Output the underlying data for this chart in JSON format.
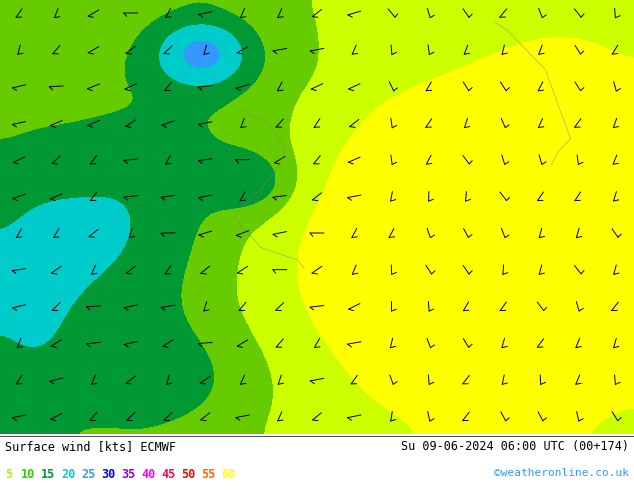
{
  "title_left": "Surface wind [kts] ECMWF",
  "title_right": "Su 09-06-2024 06:00 UTC (00+174)",
  "credit": "©weatheronline.co.uk",
  "legend_values": [
    5,
    10,
    15,
    20,
    25,
    30,
    35,
    40,
    45,
    50,
    55,
    60
  ],
  "legend_colors": [
    "#99ff00",
    "#33cc00",
    "#009933",
    "#00cccc",
    "#3399ff",
    "#0000ff",
    "#9900cc",
    "#ff00ff",
    "#ff0066",
    "#ff0000",
    "#ff6600",
    "#ffff00"
  ],
  "wind_color_levels": [
    0,
    5,
    10,
    15,
    20,
    25,
    30,
    35,
    40,
    45,
    50,
    55,
    60
  ],
  "wind_fill_colors": [
    "#ffff00",
    "#ccff00",
    "#66cc00",
    "#009933",
    "#00cccc",
    "#3399ff",
    "#0000ff",
    "#9900cc",
    "#ff00ff",
    "#ff0066",
    "#ff0000",
    "#ff6600"
  ],
  "background_color": "#ffffff",
  "text_color": "#000000",
  "fig_width": 6.34,
  "fig_height": 4.9,
  "dpi": 100
}
